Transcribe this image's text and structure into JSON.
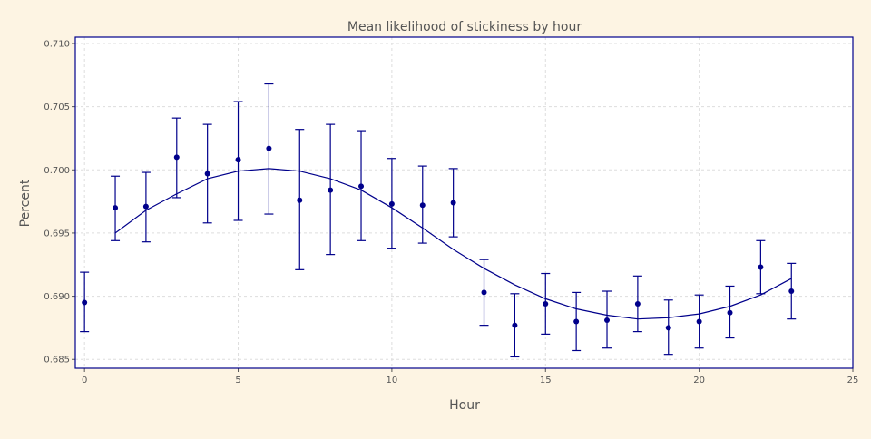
{
  "colors": {
    "background": "#fdf4e3",
    "plot_background": "#ffffff",
    "frame": "#00008b",
    "grid": "#dddddd",
    "series": "#00008b",
    "text": "#555555"
  },
  "chart_data": {
    "type": "scatter",
    "title": "Mean likelihood of stickiness by hour",
    "xlabel": "Hour",
    "ylabel": "Percent",
    "xlim": [
      -0.3,
      25
    ],
    "ylim": [
      0.6843,
      0.7105
    ],
    "xticks": [
      0,
      5,
      10,
      15,
      20,
      25
    ],
    "xtick_labels": [
      "0",
      "5",
      "10",
      "15",
      "20",
      "25"
    ],
    "yticks": [
      0.685,
      0.69,
      0.695,
      0.7,
      0.705,
      0.71
    ],
    "ytick_labels": [
      "0.685",
      "0.690",
      "0.695",
      "0.700",
      "0.705",
      "0.710"
    ],
    "grid": true,
    "legend": "none",
    "points": [
      {
        "x": 0,
        "y": 0.6895,
        "lower": 0.6872,
        "upper": 0.6919
      },
      {
        "x": 1,
        "y": 0.697,
        "lower": 0.6944,
        "upper": 0.6995
      },
      {
        "x": 2,
        "y": 0.6971,
        "lower": 0.6943,
        "upper": 0.6998
      },
      {
        "x": 3,
        "y": 0.701,
        "lower": 0.6978,
        "upper": 0.7041
      },
      {
        "x": 4,
        "y": 0.6997,
        "lower": 0.6958,
        "upper": 0.7036
      },
      {
        "x": 5,
        "y": 0.7008,
        "lower": 0.696,
        "upper": 0.7054
      },
      {
        "x": 6,
        "y": 0.7017,
        "lower": 0.6965,
        "upper": 0.7068
      },
      {
        "x": 7,
        "y": 0.6976,
        "lower": 0.6921,
        "upper": 0.7032
      },
      {
        "x": 8,
        "y": 0.6984,
        "lower": 0.6933,
        "upper": 0.7036
      },
      {
        "x": 9,
        "y": 0.6987,
        "lower": 0.6944,
        "upper": 0.7031
      },
      {
        "x": 10,
        "y": 0.6973,
        "lower": 0.6938,
        "upper": 0.7009
      },
      {
        "x": 11,
        "y": 0.6972,
        "lower": 0.6942,
        "upper": 0.7003
      },
      {
        "x": 12,
        "y": 0.6974,
        "lower": 0.6947,
        "upper": 0.7001
      },
      {
        "x": 13,
        "y": 0.6903,
        "lower": 0.6877,
        "upper": 0.6929
      },
      {
        "x": 14,
        "y": 0.6877,
        "lower": 0.6852,
        "upper": 0.6902
      },
      {
        "x": 15,
        "y": 0.6894,
        "lower": 0.687,
        "upper": 0.6918
      },
      {
        "x": 16,
        "y": 0.688,
        "lower": 0.6857,
        "upper": 0.6903
      },
      {
        "x": 17,
        "y": 0.6881,
        "lower": 0.6859,
        "upper": 0.6904
      },
      {
        "x": 18,
        "y": 0.6894,
        "lower": 0.6872,
        "upper": 0.6916
      },
      {
        "x": 19,
        "y": 0.6875,
        "lower": 0.6854,
        "upper": 0.6897
      },
      {
        "x": 20,
        "y": 0.688,
        "lower": 0.6859,
        "upper": 0.6901
      },
      {
        "x": 21,
        "y": 0.6887,
        "lower": 0.6867,
        "upper": 0.6908
      },
      {
        "x": 22,
        "y": 0.6923,
        "lower": 0.6902,
        "upper": 0.6944
      },
      {
        "x": 23,
        "y": 0.6904,
        "lower": 0.6882,
        "upper": 0.6926
      }
    ],
    "fit_curve": [
      {
        "x": 1,
        "y": 0.695
      },
      {
        "x": 2,
        "y": 0.6968
      },
      {
        "x": 3,
        "y": 0.6981
      },
      {
        "x": 4,
        "y": 0.6993
      },
      {
        "x": 5,
        "y": 0.6999
      },
      {
        "x": 6,
        "y": 0.7001
      },
      {
        "x": 7,
        "y": 0.6999
      },
      {
        "x": 8,
        "y": 0.6993
      },
      {
        "x": 9,
        "y": 0.6984
      },
      {
        "x": 10,
        "y": 0.697
      },
      {
        "x": 11,
        "y": 0.6954
      },
      {
        "x": 12,
        "y": 0.6937
      },
      {
        "x": 13,
        "y": 0.6922
      },
      {
        "x": 14,
        "y": 0.6909
      },
      {
        "x": 15,
        "y": 0.6898
      },
      {
        "x": 16,
        "y": 0.689
      },
      {
        "x": 17,
        "y": 0.6885
      },
      {
        "x": 18,
        "y": 0.6882
      },
      {
        "x": 19,
        "y": 0.6883
      },
      {
        "x": 20,
        "y": 0.6886
      },
      {
        "x": 21,
        "y": 0.6892
      },
      {
        "x": 22,
        "y": 0.6901
      },
      {
        "x": 23,
        "y": 0.6914
      }
    ]
  }
}
